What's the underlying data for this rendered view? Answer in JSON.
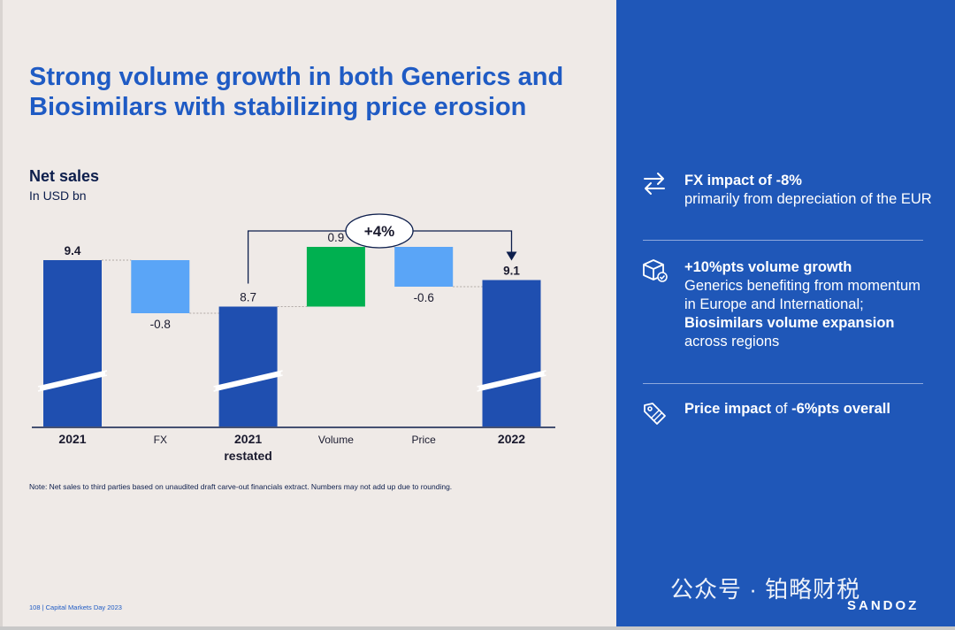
{
  "slide": {
    "title": "Strong volume growth in both Generics and Biosimilars with stabilizing price erosion",
    "note": "Note: Net sales to third parties based on unaudited draft carve-out financials extract. Numbers may not add up due to rounding.",
    "footer": "108  |  Capital Markets Day 2023"
  },
  "chart_data": {
    "type": "waterfall",
    "title": "Net sales",
    "subtitle": "In USD bn",
    "unit": "USD bn",
    "axis_break": true,
    "categories": [
      "2021",
      "FX",
      "2021\nrestated",
      "Volume",
      "Price",
      "2022"
    ],
    "category_lines": [
      [
        "2021"
      ],
      [
        "FX"
      ],
      [
        "2021",
        "restated"
      ],
      [
        "Volume"
      ],
      [
        "Price"
      ],
      [
        "2022"
      ]
    ],
    "category_bold": [
      true,
      false,
      true,
      false,
      false,
      true
    ],
    "values": [
      9.4,
      -0.8,
      8.7,
      0.9,
      -0.6,
      9.1
    ],
    "labels": [
      "9.4",
      "-0.8",
      "8.7",
      "0.9",
      "-0.6",
      "9.1"
    ],
    "kinds": [
      "total",
      "delta",
      "total",
      "delta",
      "delta",
      "total"
    ],
    "growth_annotation": "+4%",
    "colors": {
      "total": "#1f4fb0",
      "decrease": "#5aa5f7",
      "increase": "#00b050"
    }
  },
  "insights": [
    {
      "icon": "exchange-arrows-icon",
      "bold": "FX impact of -8%",
      "text": "primarily from depreciation of the EUR"
    },
    {
      "icon": "box-check-icon",
      "bold": "+10%pts volume growth",
      "text1": "Generics benefiting from momentum in Europe and International; ",
      "bold2": "Biosimilars volume expansion",
      "text2": "across regions"
    },
    {
      "icon": "price-tag-icon",
      "bold": "Price impact",
      "text": "of",
      "bold2": "-6%pts overall"
    }
  ],
  "brand": "SANDOZ",
  "watermark": "公众号 · 铂略财税"
}
